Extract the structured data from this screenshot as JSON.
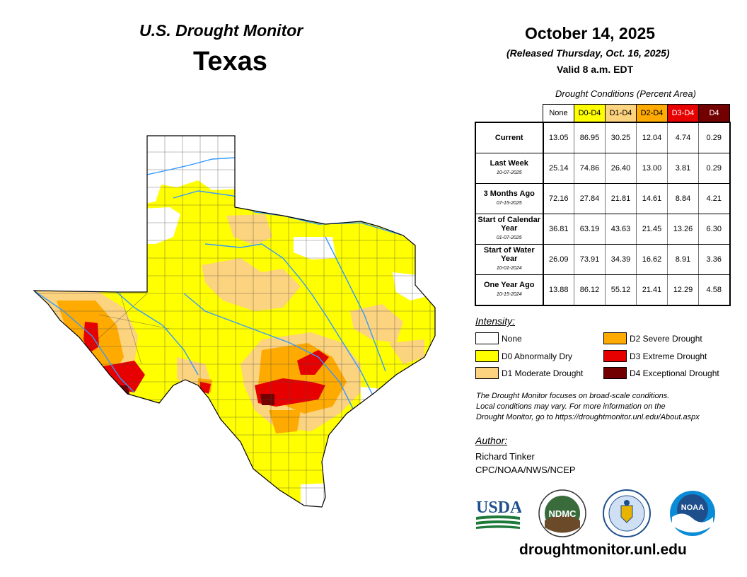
{
  "header": {
    "title": "U.S. Drought Monitor",
    "state": "Texas",
    "date": "October 14, 2025",
    "released": "(Released Thursday, Oct. 16, 2025)",
    "valid": "Valid 8 a.m. EDT"
  },
  "conditions": {
    "caption": "Drought Conditions (Percent Area)",
    "columns": [
      "None",
      "D0-D4",
      "D1-D4",
      "D2-D4",
      "D3-D4",
      "D4"
    ],
    "rows": [
      {
        "label": "Current",
        "sub": "",
        "values": [
          "13.05",
          "86.95",
          "30.25",
          "12.04",
          "4.74",
          "0.29"
        ]
      },
      {
        "label": "Last Week",
        "sub": "10-07-2025",
        "values": [
          "25.14",
          "74.86",
          "26.40",
          "13.00",
          "3.81",
          "0.29"
        ]
      },
      {
        "label": "3 Months Ago",
        "sub": "07-15-2025",
        "values": [
          "72.16",
          "27.84",
          "21.81",
          "14.61",
          "8.84",
          "4.21"
        ]
      },
      {
        "label": "Start of Calendar Year",
        "sub": "01-07-2025",
        "values": [
          "36.81",
          "63.19",
          "43.63",
          "21.45",
          "13.26",
          "6.30"
        ]
      },
      {
        "label": "Start of Water Year",
        "sub": "10-01-2024",
        "values": [
          "26.09",
          "73.91",
          "34.39",
          "16.62",
          "8.91",
          "3.36"
        ]
      },
      {
        "label": "One Year Ago",
        "sub": "10-15-2024",
        "values": [
          "13.88",
          "86.12",
          "55.12",
          "21.41",
          "12.29",
          "4.58"
        ]
      }
    ]
  },
  "intensity": {
    "title": "Intensity:",
    "items": [
      {
        "label": "None",
        "color": "#ffffff"
      },
      {
        "label": "D0 Abnormally Dry",
        "color": "#ffff00"
      },
      {
        "label": "D1 Moderate Drought",
        "color": "#fcd37f"
      },
      {
        "label": "D2 Severe Drought",
        "color": "#ffaa00"
      },
      {
        "label": "D3 Extreme Drought",
        "color": "#e60000"
      },
      {
        "label": "D4 Exceptional Drought",
        "color": "#730000"
      }
    ]
  },
  "note": {
    "line1": "The Drought Monitor focuses on broad-scale conditions.",
    "line2": "Local conditions may vary. For more information on the",
    "line3": "Drought Monitor, go to https://droughtmonitor.unl.edu/About.aspx"
  },
  "author": {
    "heading": "Author:",
    "name": "Richard Tinker",
    "org": "CPC/NOAA/NWS/NCEP"
  },
  "logos": {
    "usda": "USDA",
    "ndmc": "NDMC",
    "noaa": "NOAA"
  },
  "footer": {
    "url": "droughtmonitor.unl.edu"
  }
}
